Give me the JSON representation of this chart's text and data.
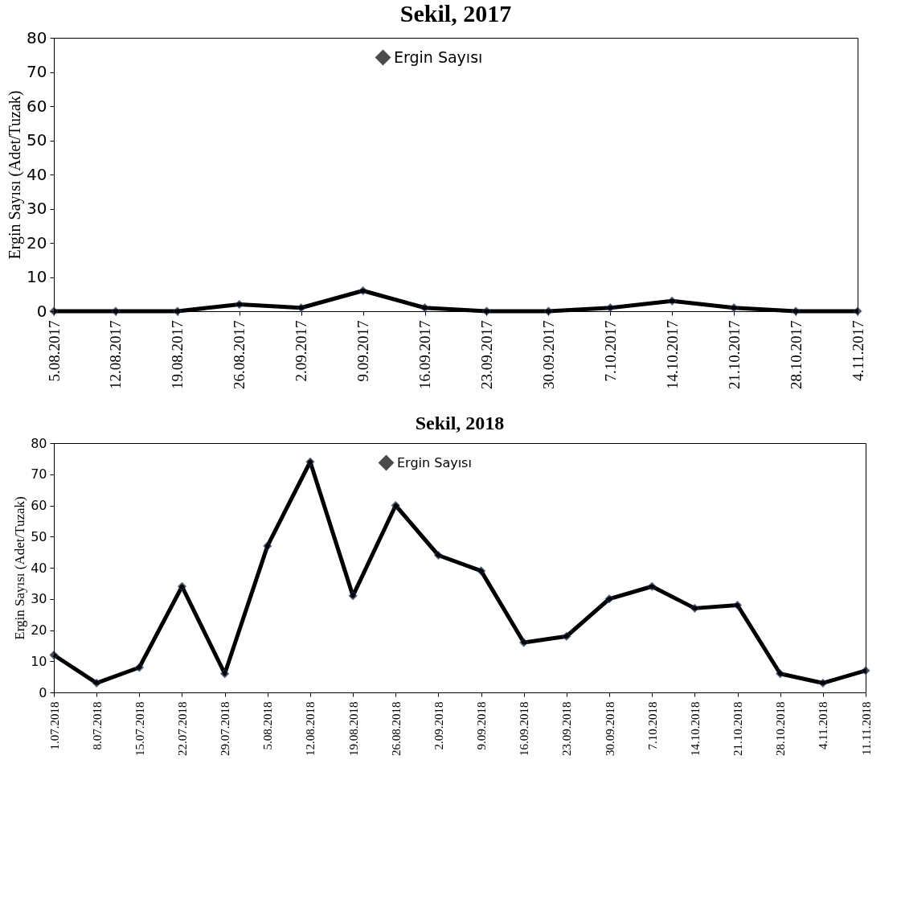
{
  "chart_data": [
    {
      "type": "line",
      "title": "Sekil, 2017",
      "ylabel": "Ergin Sayısı (Adet/Tuzak)",
      "categories": [
        "5.08.2017",
        "12.08.2017",
        "19.08.2017",
        "26.08.2017",
        "2.09.2017",
        "9.09.2017",
        "16.09.2017",
        "23.09.2017",
        "30.09.2017",
        "7.10.2017",
        "14.10.2017",
        "21.10.2017",
        "28.10.2017",
        "4.11.2017"
      ],
      "series": [
        {
          "name": "Ergin Sayısı",
          "color": "#000000",
          "values": [
            0,
            0,
            0,
            2,
            1,
            6,
            1,
            0,
            0,
            1,
            3,
            1,
            0,
            0
          ]
        }
      ],
      "ylim": [
        0,
        80
      ],
      "yticks": [
        0,
        10,
        20,
        30,
        40,
        50,
        60,
        70,
        80
      ],
      "grid": false,
      "legend": "top",
      "marker": "diamond",
      "line_style": "solid"
    },
    {
      "type": "line",
      "title": "Sekil, 2018",
      "ylabel": "Ergin Sayısı  (Adet/Tuzak)",
      "categories": [
        "1.07.2018",
        "8.07.2018",
        "15.07.2018",
        "22.07.2018",
        "29.07.2018",
        "5.08.2018",
        "12.08.2018",
        "19.08.2018",
        "26.08.2018",
        "2.09.2018",
        "9.09.2018",
        "16.09.2018",
        "23.09.2018",
        "30.09.2018",
        "7.10.2018",
        "14.10.2018",
        "21.10.2018",
        "28.10.2018",
        "4.11.2018",
        "11.11.2018"
      ],
      "series": [
        {
          "name": "Ergin Sayısı",
          "color": "#000000",
          "values": [
            12,
            3,
            8,
            34,
            6,
            47,
            74,
            31,
            60,
            44,
            39,
            16,
            18,
            30,
            34,
            27,
            28,
            6,
            3,
            7
          ]
        }
      ],
      "ylim": [
        0,
        80
      ],
      "yticks": [
        0,
        10,
        20,
        30,
        40,
        50,
        60,
        70,
        80
      ],
      "grid": false,
      "legend": "top",
      "marker": "diamond",
      "line_style": "solid"
    }
  ]
}
